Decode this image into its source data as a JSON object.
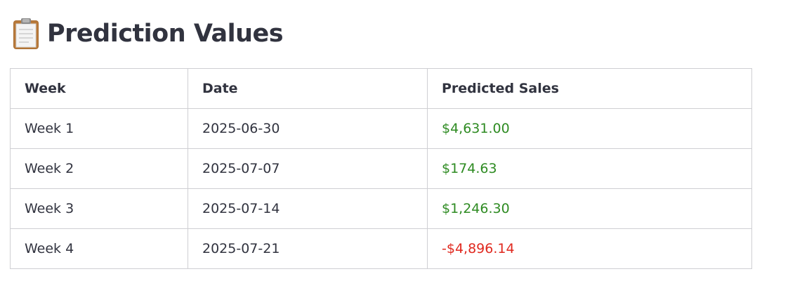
{
  "header": {
    "icon": "clipboard-icon",
    "title": "Prediction Values"
  },
  "table": {
    "columns": [
      "Week",
      "Date",
      "Predicted Sales"
    ],
    "rows": [
      {
        "week": "Week 1",
        "date": "2025-06-30",
        "sales": "$4,631.00",
        "sign": "positive"
      },
      {
        "week": "Week 2",
        "date": "2025-07-07",
        "sales": "$174.63",
        "sign": "positive"
      },
      {
        "week": "Week 3",
        "date": "2025-07-14",
        "sales": "$1,246.30",
        "sign": "positive"
      },
      {
        "week": "Week 4",
        "date": "2025-07-21",
        "sales": "-$4,896.14",
        "sign": "negative"
      }
    ]
  },
  "colors": {
    "positive": "#2e8b22",
    "negative": "#e0291f",
    "text": "#31333f"
  }
}
